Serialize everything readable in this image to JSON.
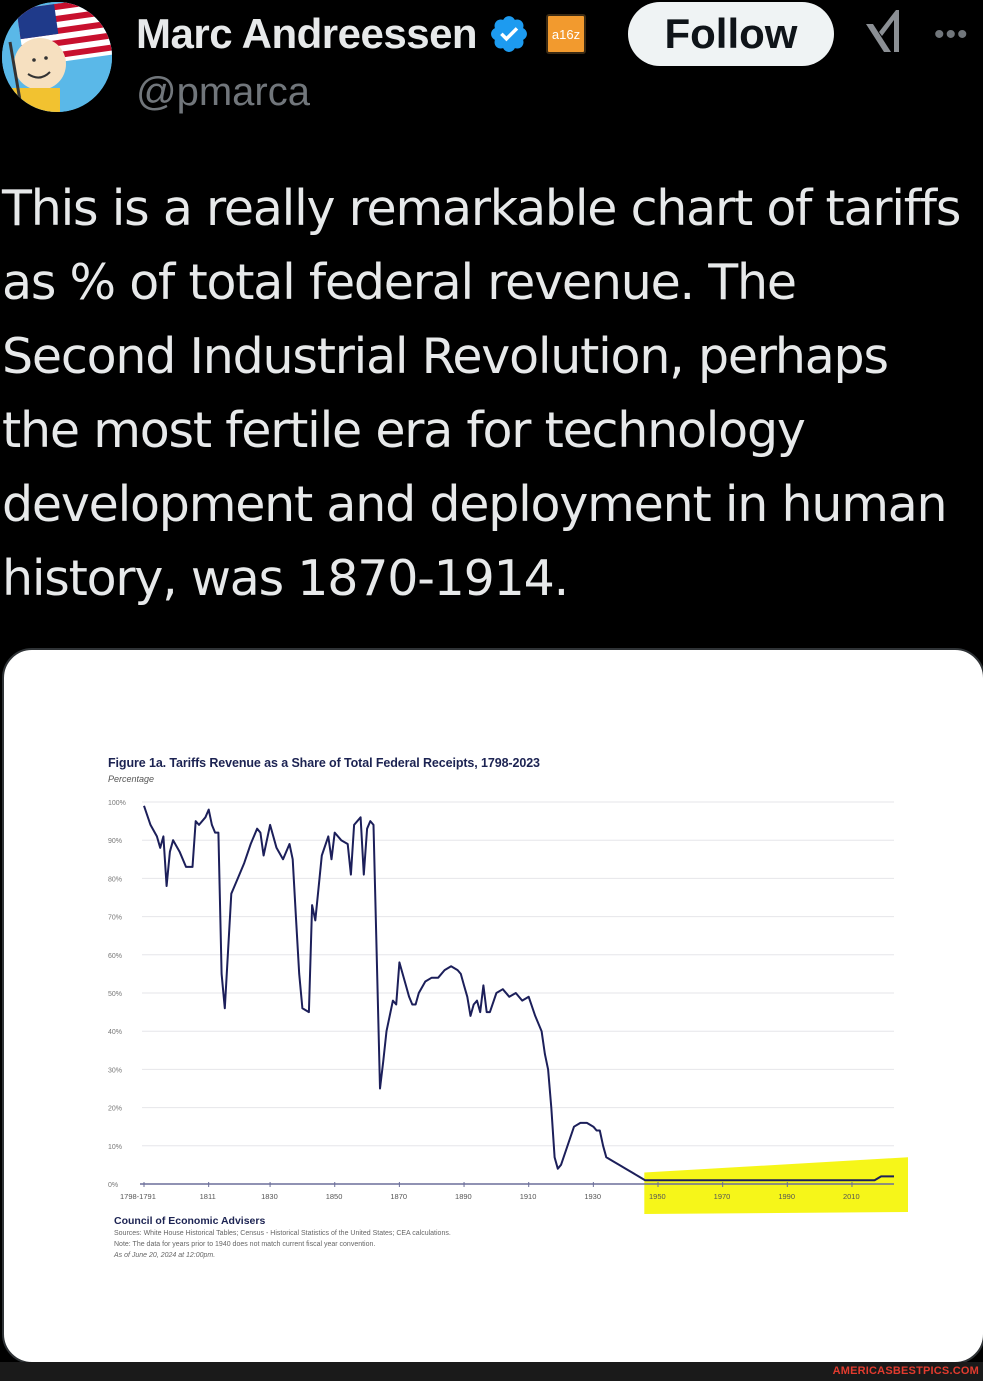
{
  "tweet": {
    "author": {
      "display_name": "Marc Andreessen",
      "handle": "@pmarca",
      "verified": true,
      "affiliation_badge": "a16z"
    },
    "follow_label": "Follow",
    "more_label": "•••",
    "text_lines": [
      "This is a really remarkable chart of tariffs",
      "as % of total federal revenue. The",
      "Second Industrial Revolution, perhaps",
      "the most fertile era for technology",
      "development and deployment in human",
      "history, was 1870-1914."
    ]
  },
  "figure": {
    "title": "Figure 1a. Tariffs Revenue as a Share of Total Federal Receipts, 1798-2023",
    "subtitle": "Percentage",
    "source_title": "Council of Economic Advisers",
    "sources": "Sources: White House Historical Tables; Census - Historical Statistics of the United States; CEA calculations.",
    "note": "Note: The data for years prior to 1940 does not match current fiscal year convention.",
    "as_of": "As of June 20, 2024 at 12:00pm."
  },
  "chart_data": {
    "type": "line",
    "title": "Figure 1a. Tariffs Revenue as a Share of Total Federal Receipts, 1798-2023",
    "subtitle": "Percentage",
    "xlabel": "",
    "ylabel": "Percentage",
    "ylim": [
      0,
      100
    ],
    "y_ticks": [
      "0%",
      "10%",
      "20%",
      "30%",
      "40%",
      "50%",
      "60%",
      "70%",
      "80%",
      "90%",
      "100%"
    ],
    "x_ticks": [
      "1798-1791",
      "1811",
      "1830",
      "1850",
      "1870",
      "1890",
      "1910",
      "1930",
      "1950",
      "1970",
      "1990",
      "2010"
    ],
    "grid": true,
    "highlight": {
      "from": 1947,
      "to": 2023,
      "color": "#f5f500"
    },
    "series": [
      {
        "name": "Tariff revenue share",
        "color": "#1c1f5a",
        "x": [
          1791,
          1793,
          1795,
          1796,
          1797,
          1798,
          1799,
          1800,
          1802,
          1804,
          1806,
          1807,
          1808,
          1810,
          1811,
          1812,
          1813,
          1814,
          1815,
          1816,
          1818,
          1820,
          1822,
          1824,
          1826,
          1827,
          1828,
          1830,
          1832,
          1834,
          1836,
          1837,
          1838,
          1839,
          1840,
          1842,
          1843,
          1844,
          1846,
          1848,
          1849,
          1850,
          1852,
          1854,
          1855,
          1856,
          1858,
          1859,
          1860,
          1861,
          1862,
          1864,
          1865,
          1866,
          1868,
          1869,
          1870,
          1872,
          1873,
          1874,
          1875,
          1876,
          1878,
          1880,
          1882,
          1884,
          1886,
          1888,
          1889,
          1890,
          1891,
          1892,
          1893,
          1894,
          1895,
          1896,
          1897,
          1898,
          1900,
          1902,
          1904,
          1906,
          1908,
          1910,
          1912,
          1914,
          1915,
          1916,
          1917,
          1918,
          1919,
          1920,
          1922,
          1924,
          1926,
          1928,
          1930,
          1931,
          1932,
          1933,
          1934,
          1936,
          1938,
          1940,
          1942,
          1944,
          1946,
          1950,
          1960,
          1970,
          1980,
          1990,
          2000,
          2010,
          2017,
          2019,
          2021,
          2023
        ],
        "values": [
          99,
          94,
          91,
          88,
          91,
          78,
          87,
          90,
          87,
          83,
          83,
          95,
          94,
          96,
          98,
          94,
          92,
          92,
          55,
          46,
          76,
          80,
          84,
          89,
          93,
          92,
          86,
          94,
          88,
          85,
          89,
          85,
          70,
          55,
          46,
          45,
          73,
          69,
          86,
          91,
          85,
          92,
          90,
          89,
          81,
          94,
          96,
          81,
          93,
          95,
          94,
          25,
          32,
          40,
          48,
          47,
          58,
          52,
          49,
          47,
          47,
          50,
          53,
          54,
          54,
          56,
          57,
          56,
          55,
          52,
          49,
          44,
          47,
          48,
          45,
          52,
          45,
          45,
          50,
          51,
          49,
          50,
          48,
          49,
          44,
          40,
          34,
          30,
          20,
          7,
          4,
          5,
          10,
          15,
          16,
          16,
          15,
          14,
          14,
          10,
          7,
          6,
          5,
          4,
          3,
          2,
          1,
          1,
          1,
          1,
          1,
          1,
          1,
          1,
          1,
          2,
          2,
          2
        ]
      }
    ],
    "source": "Council of Economic Advisers"
  },
  "watermark": "AMERICASBESTPICS.COM"
}
